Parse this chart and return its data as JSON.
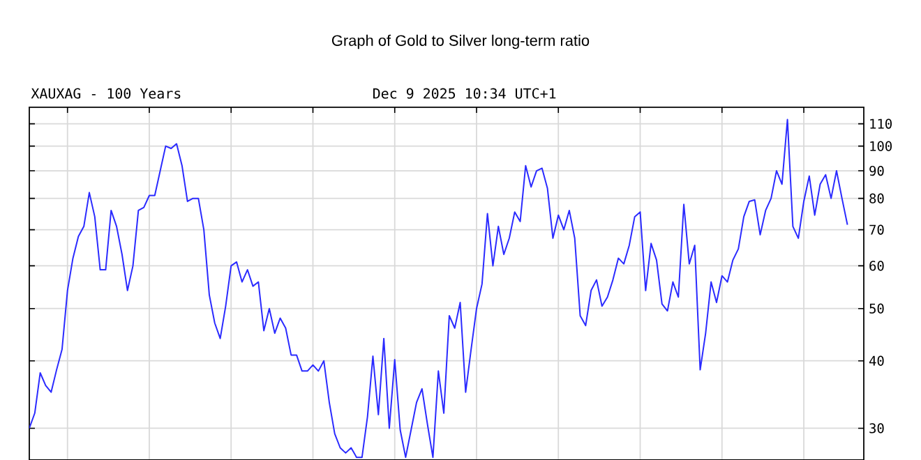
{
  "chart_data": {
    "type": "line",
    "title": "Graph of Gold to Silver long-term ratio",
    "annotations": [
      "XAUXAG - 100 Years",
      "Dec 9 2025 10:34 UTC+1"
    ],
    "categories": [
      null,
      null,
      null,
      null,
      null,
      null,
      null,
      null,
      null,
      null,
      null,
      null,
      null,
      null,
      null,
      null,
      null,
      null,
      null,
      null,
      null,
      null,
      null,
      null,
      null,
      null,
      null,
      null,
      null,
      null,
      null,
      null,
      null,
      null,
      null,
      null,
      null,
      null,
      null,
      null,
      null,
      null,
      null,
      null,
      null,
      null,
      null,
      null,
      null,
      null,
      null,
      null,
      null,
      null,
      null,
      null,
      null,
      null,
      null,
      null,
      null,
      null,
      null,
      null,
      null,
      null,
      null,
      null,
      null,
      null,
      null,
      null,
      null,
      null,
      null,
      null,
      null,
      null,
      null,
      null,
      null,
      null,
      null,
      null,
      null,
      null,
      null,
      null,
      null,
      null,
      null,
      null,
      null,
      null,
      null,
      null,
      null,
      null,
      null,
      null,
      null,
      null,
      null,
      null,
      null,
      null,
      null,
      null,
      null,
      null,
      null,
      null,
      null,
      null,
      null,
      null,
      null,
      null,
      null,
      null,
      null,
      null,
      null,
      null,
      null,
      null,
      null,
      null,
      null,
      null,
      null,
      null,
      null,
      null,
      null,
      null,
      null,
      null,
      null,
      null,
      null,
      null,
      null,
      null,
      null,
      null,
      null,
      null,
      null,
      null,
      null
    ],
    "series": [
      {
        "color": "#2a2aff",
        "values": [
          30,
          32,
          38,
          36,
          35,
          38.5,
          42,
          54,
          62,
          68,
          71,
          82,
          74,
          59,
          59,
          76,
          71,
          63,
          54,
          60,
          76,
          77,
          81,
          81,
          90,
          100,
          99,
          101,
          92,
          79,
          80,
          80,
          70,
          53,
          47,
          44,
          50.5,
          60,
          61,
          56,
          59,
          55,
          56,
          45.5,
          50,
          45,
          48,
          46,
          41,
          41,
          38.3,
          38.3,
          39.3,
          38.3,
          40,
          33.5,
          29.3,
          27.6,
          27,
          27.6,
          26.5,
          26.5,
          31.5,
          40.8,
          31.8,
          44,
          30,
          40.2,
          29.8,
          26.5,
          29.8,
          33.5,
          35.5,
          30.5,
          26.5,
          38.3,
          32,
          48.5,
          46,
          51.3,
          35,
          42,
          50,
          55.5,
          75,
          60,
          71,
          63,
          67.5,
          75.5,
          72.5,
          92,
          84,
          90,
          91,
          83.5,
          67.5,
          74.5,
          70,
          76,
          67.5,
          48.5,
          46.5,
          54,
          56.5,
          50.5,
          52.5,
          56.5,
          62,
          60.5,
          65.5,
          74,
          75.5,
          54,
          66,
          61.5,
          51,
          49.5,
          56,
          52.5,
          78,
          60.5,
          65.5,
          38.5,
          45,
          56,
          51.3,
          57.5,
          56,
          61.5,
          64.5,
          74,
          79,
          79.5,
          68.5,
          76,
          80,
          90,
          85,
          112,
          71,
          67.5,
          79,
          88,
          74.5,
          85,
          88.5,
          80,
          90,
          80,
          71.5
        ]
      }
    ],
    "ylim": [
      26.2,
      118
    ],
    "yticks": [
      30,
      40,
      50,
      60,
      70,
      80,
      90,
      100,
      110
    ],
    "log": true,
    "grid": true,
    "tick_labels": "y",
    "marker": "none",
    "line_style": "solid"
  }
}
